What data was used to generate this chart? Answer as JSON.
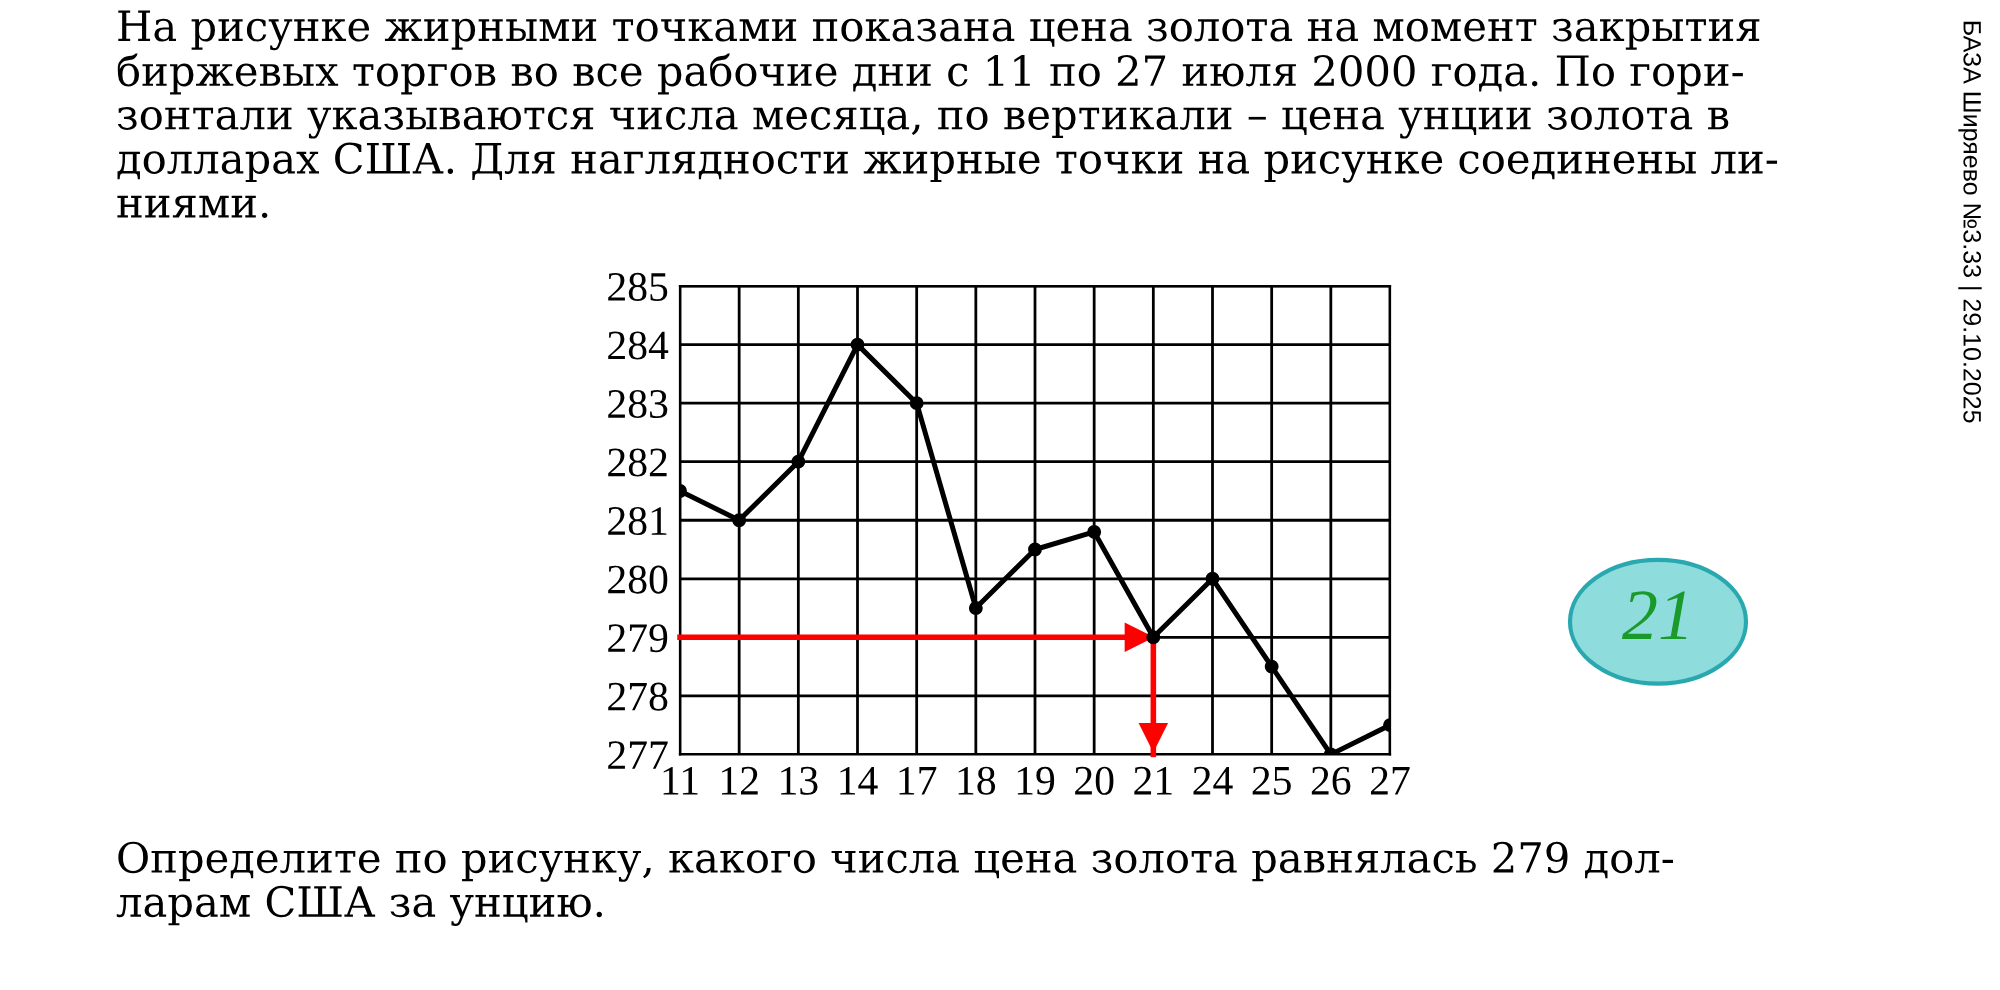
{
  "chart_data": {
    "type": "line",
    "title": "На рисунке жирными точками показана цена золота на момент закрытия\nбиржевых торгов во все рабочие дни с 11 по 27 июля 2000 года. По гори-\nзонтали указываются числа месяца, по вертикали – цена унции золота в\nдолларах США. Для наглядности жирные точки на рисунке соединены ли-\nниями.",
    "categories": [
      "11",
      "12",
      "13",
      "14",
      "17",
      "18",
      "19",
      "20",
      "21",
      "24",
      "25",
      "26",
      "27"
    ],
    "series": [
      {
        "color": "#000000",
        "values": [
          281.5,
          281,
          282,
          284,
          283,
          279.5,
          280.5,
          280.8,
          279,
          280,
          278.5,
          277,
          277.5
        ]
      }
    ],
    "ylim": [
      277,
      285
    ],
    "yticks": [
      277,
      278,
      279,
      280,
      281,
      282,
      283,
      284,
      285
    ],
    "grid": true,
    "marker": "circle",
    "line_style": "solid",
    "annotations": [
      "Определите по рисунку, какого числа цена золота равнялась 279 дол-\nларам США за унцию.",
      "БАЗА Ширяево №3.33 | 29.10.2025",
      "21"
    ],
    "ref_lines": [
      {
        "axis": "y",
        "value": 279,
        "color": "#ff0000"
      },
      {
        "axis": "x",
        "value": "21",
        "color": "#ff0000"
      }
    ]
  }
}
